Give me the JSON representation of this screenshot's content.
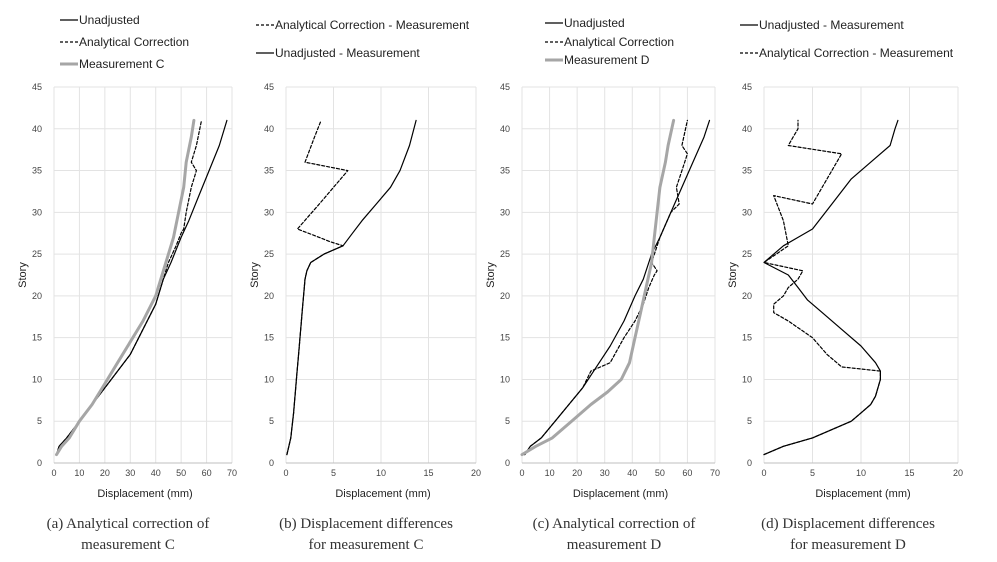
{
  "chart_data": [
    {
      "type": "line",
      "panel": "a",
      "caption": [
        "(a) Analytical correction of",
        "measurement C"
      ],
      "xlabel": "Displacement (mm)",
      "ylabel": "Story",
      "xlim": [
        0,
        70
      ],
      "ylim": [
        0,
        45
      ],
      "xticks": [
        0,
        10,
        20,
        30,
        40,
        50,
        60,
        70
      ],
      "yticks": [
        0,
        5,
        10,
        15,
        20,
        25,
        30,
        35,
        40,
        45
      ],
      "series": [
        {
          "name": "Unadjusted",
          "color": "#000000",
          "style": "solid",
          "points": [
            [
              1,
              1
            ],
            [
              2,
              2
            ],
            [
              5,
              3
            ],
            [
              10,
              5
            ],
            [
              15,
              7
            ],
            [
              20,
              9
            ],
            [
              25,
              11
            ],
            [
              30,
              13
            ],
            [
              35,
              16
            ],
            [
              40,
              19
            ],
            [
              43,
              22
            ],
            [
              46,
              24
            ],
            [
              50,
              27
            ],
            [
              53,
              29
            ],
            [
              57,
              32
            ],
            [
              61,
              35
            ],
            [
              65,
              38
            ],
            [
              68,
              41
            ]
          ]
        },
        {
          "name": "Analytical Correction",
          "color": "#000000",
          "style": "dashed",
          "points": [
            [
              1,
              1
            ],
            [
              2,
              2
            ],
            [
              5,
              3
            ],
            [
              10,
              5
            ],
            [
              15,
              7
            ],
            [
              20,
              9
            ],
            [
              25,
              11
            ],
            [
              30,
              13
            ],
            [
              35,
              16
            ],
            [
              40,
              19
            ],
            [
              43,
              22
            ],
            [
              45,
              24
            ],
            [
              48,
              26
            ],
            [
              50,
              27.5
            ],
            [
              51,
              28
            ],
            [
              52,
              30
            ],
            [
              54,
              33
            ],
            [
              56,
              35
            ],
            [
              54,
              36
            ],
            [
              56,
              38
            ],
            [
              58,
              41
            ]
          ]
        },
        {
          "name": "Measurement C",
          "color": "#a6a6a6",
          "style": "thick",
          "points": [
            [
              1,
              1
            ],
            [
              3,
              2
            ],
            [
              6,
              3
            ],
            [
              10,
              5
            ],
            [
              15,
              7
            ],
            [
              20,
              9.5
            ],
            [
              25,
              12
            ],
            [
              30,
              14.5
            ],
            [
              35,
              17
            ],
            [
              40,
              20
            ],
            [
              44,
              24
            ],
            [
              47,
              27
            ],
            [
              49,
              30
            ],
            [
              51,
              33
            ],
            [
              52,
              36
            ],
            [
              54,
              39
            ],
            [
              55,
              41
            ]
          ]
        }
      ]
    },
    {
      "type": "line",
      "panel": "b",
      "caption": [
        "(b) Displacement differences",
        "for measurement C"
      ],
      "xlabel": "Displacement (mm)",
      "ylabel": "Story",
      "xlim": [
        0,
        20
      ],
      "ylim": [
        0,
        45
      ],
      "xticks": [
        0,
        5,
        10,
        15,
        20
      ],
      "yticks": [
        0,
        5,
        10,
        15,
        20,
        25,
        30,
        35,
        40,
        45
      ],
      "series": [
        {
          "name": "Analytical Correction - Measurement",
          "color": "#000000",
          "style": "dashed",
          "points": [
            [
              0.1,
              1
            ],
            [
              0.5,
              3
            ],
            [
              0.8,
              6
            ],
            [
              1.1,
              10
            ],
            [
              1.4,
              14
            ],
            [
              1.7,
              18
            ],
            [
              2,
              22
            ],
            [
              2.2,
              23
            ],
            [
              2.6,
              24
            ],
            [
              4,
              25
            ],
            [
              6,
              26
            ],
            [
              4.6,
              26.5
            ],
            [
              3.5,
              27
            ],
            [
              1.2,
              28
            ],
            [
              3.5,
              31
            ],
            [
              6.5,
              35
            ],
            [
              2,
              36
            ],
            [
              3,
              39
            ],
            [
              3.7,
              41
            ]
          ]
        },
        {
          "name": "Unadjusted - Measurement",
          "color": "#000000",
          "style": "solid",
          "points": [
            [
              0.1,
              1
            ],
            [
              0.5,
              3
            ],
            [
              0.8,
              6
            ],
            [
              1.1,
              10
            ],
            [
              1.4,
              14
            ],
            [
              1.7,
              18
            ],
            [
              2,
              22
            ],
            [
              2.2,
              23
            ],
            [
              2.6,
              24
            ],
            [
              4,
              25
            ],
            [
              6,
              26
            ],
            [
              7,
              27.5
            ],
            [
              8,
              29
            ],
            [
              9.5,
              31
            ],
            [
              11,
              33
            ],
            [
              12,
              35
            ],
            [
              13,
              38
            ],
            [
              13.7,
              41
            ]
          ]
        }
      ]
    },
    {
      "type": "line",
      "panel": "c",
      "caption": [
        "(c) Analytical correction of",
        "measurement D"
      ],
      "xlabel": "Displacement (mm)",
      "ylabel": "Story",
      "xlim": [
        0,
        70
      ],
      "ylim": [
        0,
        45
      ],
      "xticks": [
        0,
        10,
        20,
        30,
        40,
        50,
        60,
        70
      ],
      "yticks": [
        0,
        5,
        10,
        15,
        20,
        25,
        30,
        35,
        40,
        45
      ],
      "series": [
        {
          "name": "Unadjusted",
          "color": "#000000",
          "style": "solid",
          "points": [
            [
              1,
              1
            ],
            [
              3,
              2
            ],
            [
              7,
              3
            ],
            [
              12,
              5
            ],
            [
              17,
              7
            ],
            [
              22,
              9
            ],
            [
              27,
              11.5
            ],
            [
              32,
              14
            ],
            [
              37,
              17
            ],
            [
              41,
              20
            ],
            [
              44,
              22
            ],
            [
              47,
              25
            ],
            [
              50,
              27
            ],
            [
              54,
              30
            ],
            [
              58,
              33
            ],
            [
              62,
              36
            ],
            [
              66,
              39
            ],
            [
              68,
              41
            ]
          ]
        },
        {
          "name": "Analytical Correction",
          "color": "#000000",
          "style": "dashed",
          "points": [
            [
              1,
              1
            ],
            [
              3,
              2
            ],
            [
              7,
              3
            ],
            [
              12,
              5
            ],
            [
              17,
              7
            ],
            [
              22,
              9
            ],
            [
              25,
              11
            ],
            [
              32,
              12
            ],
            [
              37,
              15
            ],
            [
              41,
              17
            ],
            [
              44,
              19
            ],
            [
              46,
              21
            ],
            [
              48,
              22.5
            ],
            [
              49,
              23
            ],
            [
              47,
              24
            ],
            [
              50,
              27
            ],
            [
              54,
              30
            ],
            [
              57,
              31
            ],
            [
              56,
              33
            ],
            [
              59,
              36
            ],
            [
              60,
              37
            ],
            [
              58,
              38
            ],
            [
              60,
              41
            ]
          ]
        },
        {
          "name": "Measurement D",
          "color": "#a6a6a6",
          "style": "thick",
          "points": [
            [
              0,
              1
            ],
            [
              5,
              2
            ],
            [
              11,
              3
            ],
            [
              18,
              5
            ],
            [
              25,
              7
            ],
            [
              31,
              8.5
            ],
            [
              36,
              10
            ],
            [
              39,
              12
            ],
            [
              41,
              15
            ],
            [
              43,
              18
            ],
            [
              45,
              21
            ],
            [
              47,
              24
            ],
            [
              48,
              27
            ],
            [
              49,
              30
            ],
            [
              50,
              33
            ],
            [
              52,
              36
            ],
            [
              53,
              38
            ],
            [
              55,
              41
            ]
          ]
        }
      ]
    },
    {
      "type": "line",
      "panel": "d",
      "caption": [
        "(d) Displacement differences",
        "for measurement D"
      ],
      "xlabel": "Displacement (mm)",
      "ylabel": "Story",
      "xlim": [
        0,
        20
      ],
      "ylim": [
        0,
        45
      ],
      "xticks": [
        0,
        5,
        10,
        15,
        20
      ],
      "yticks": [
        0,
        5,
        10,
        15,
        20,
        25,
        30,
        35,
        40,
        45
      ],
      "series": [
        {
          "name": "Unadjusted - Measurement",
          "color": "#000000",
          "style": "solid",
          "points": [
            [
              0,
              1
            ],
            [
              2,
              2
            ],
            [
              5,
              3
            ],
            [
              7,
              4
            ],
            [
              9,
              5
            ],
            [
              10,
              6
            ],
            [
              11,
              7
            ],
            [
              11.5,
              8
            ],
            [
              12,
              10
            ],
            [
              12,
              11
            ],
            [
              11.5,
              12
            ],
            [
              10,
              14
            ],
            [
              8,
              16
            ],
            [
              6,
              18
            ],
            [
              4.5,
              19.5
            ],
            [
              3.5,
              21
            ],
            [
              2.5,
              22.5
            ],
            [
              0,
              24
            ],
            [
              2,
              26
            ],
            [
              3.5,
              27
            ],
            [
              5,
              28
            ],
            [
              7,
              31
            ],
            [
              9,
              34
            ],
            [
              11,
              36
            ],
            [
              13,
              38
            ],
            [
              13.5,
              40
            ],
            [
              13.8,
              41
            ]
          ]
        },
        {
          "name": "Analytical Correction - Measurement",
          "color": "#000000",
          "style": "dashed",
          "points": [
            [
              0,
              1
            ],
            [
              2,
              2
            ],
            [
              5,
              3
            ],
            [
              7,
              4
            ],
            [
              9,
              5
            ],
            [
              10,
              6
            ],
            [
              11,
              7
            ],
            [
              11.5,
              8
            ],
            [
              12,
              10
            ],
            [
              12,
              11
            ],
            [
              8,
              11.5
            ],
            [
              7.5,
              12
            ],
            [
              6.5,
              13
            ],
            [
              5,
              15
            ],
            [
              2.5,
              17
            ],
            [
              1,
              18
            ],
            [
              1,
              19
            ],
            [
              2,
              20
            ],
            [
              2.5,
              21
            ],
            [
              3.5,
              22
            ],
            [
              4,
              23
            ],
            [
              0,
              24
            ],
            [
              2.5,
              26
            ],
            [
              2,
              29
            ],
            [
              1,
              32
            ],
            [
              5,
              31
            ],
            [
              8,
              37
            ],
            [
              2.5,
              38
            ],
            [
              3,
              39
            ],
            [
              3.5,
              40
            ],
            [
              3.5,
              41
            ]
          ]
        }
      ]
    }
  ]
}
